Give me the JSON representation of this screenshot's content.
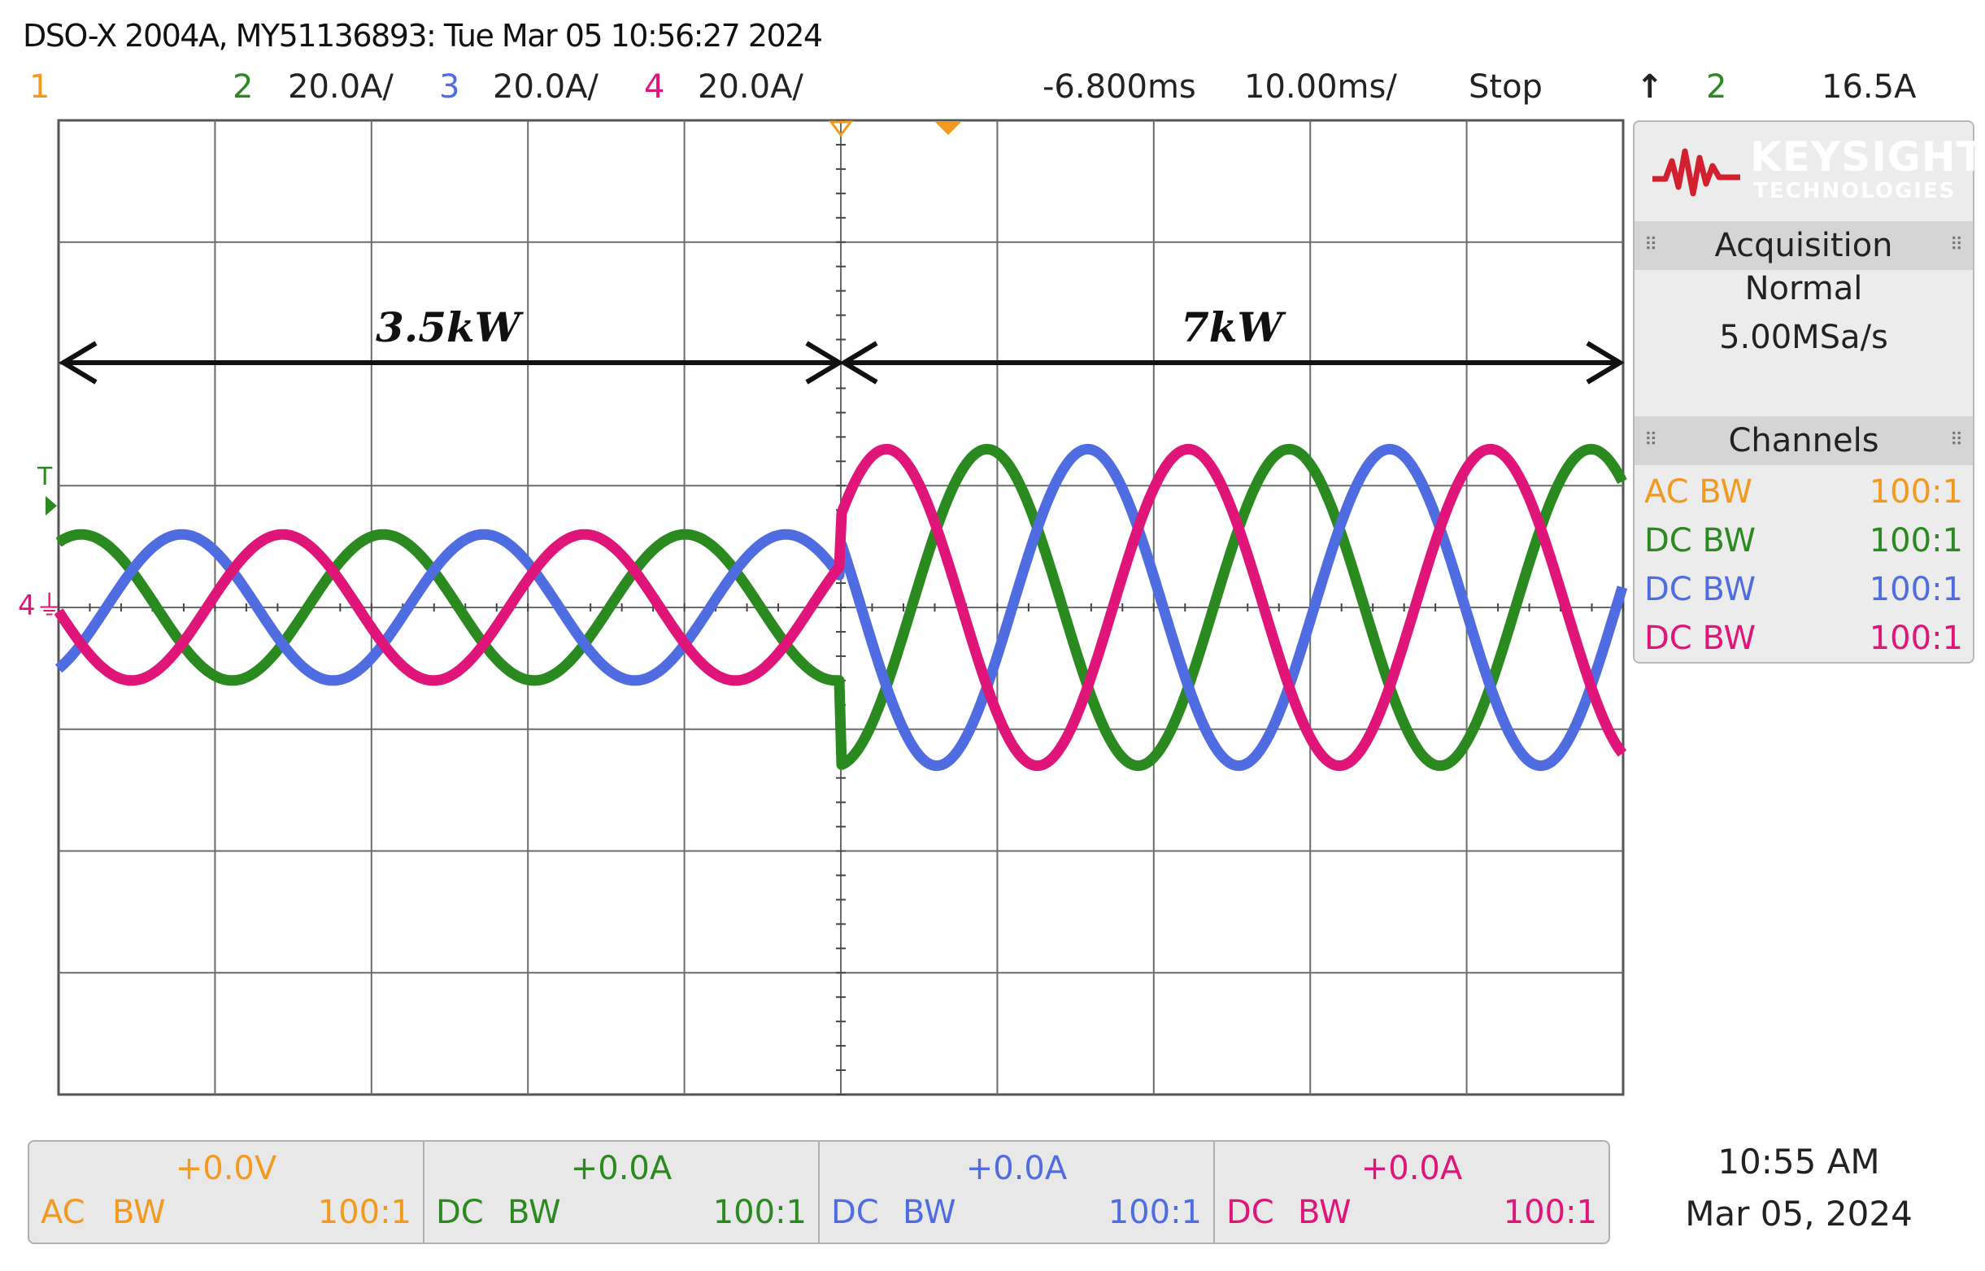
{
  "header": {
    "title": "DSO-X 2004A, MY51136893: Tue Mar 05 10:56:27 2024",
    "ch1_num": "1",
    "ch2_num": "2",
    "ch2_scale": "20.0A/",
    "ch3_num": "3",
    "ch3_scale": "20.0A/",
    "ch4_num": "4",
    "ch4_scale": "20.0A/",
    "time_delay": "-6.800ms",
    "time_scale": "10.00ms/",
    "run_state": "Stop",
    "trigger_source": "2",
    "trigger_level": "16.5A"
  },
  "annotations": {
    "left": "3.5kW",
    "right": "7kW"
  },
  "side_panel": {
    "logo": "KEYSIGHT",
    "logo_sub": "TECHNOLOGIES",
    "acq_heading": "Acquisition",
    "acq_mode": "Normal",
    "acq_rate": "5.00MSa/s",
    "ch_heading": "Channels",
    "channels": [
      {
        "coupling": "AC BW",
        "probe": "100:1"
      },
      {
        "coupling": "DC BW",
        "probe": "100:1"
      },
      {
        "coupling": "DC BW",
        "probe": "100:1"
      },
      {
        "coupling": "DC BW",
        "probe": "100:1"
      }
    ]
  },
  "bottom_bar": [
    {
      "offset": "+0.0V",
      "coupling": "AC",
      "bw": "BW",
      "probe": "100:1"
    },
    {
      "offset": "+0.0A",
      "coupling": "DC",
      "bw": "BW",
      "probe": "100:1"
    },
    {
      "offset": "+0.0A",
      "coupling": "DC",
      "bw": "BW",
      "probe": "100:1"
    },
    {
      "offset": "+0.0A",
      "coupling": "DC",
      "bw": "BW",
      "probe": "100:1"
    }
  ],
  "clock": {
    "time": "10:55 AM",
    "date": "Mar 05, 2024"
  },
  "colors": {
    "ch1": "#f39a1e",
    "ch2": "#2a8a1f",
    "ch3": "#4f6de0",
    "ch4": "#e0157a",
    "grid": "#6b6b6b"
  },
  "waveform": {
    "amp_before_divisions": 0.6,
    "amp_after_divisions": 1.3,
    "period_divisions": 1.93,
    "step_time_divisions": 5.0,
    "phase_order": [
      "ch2",
      "ch3",
      "ch4"
    ]
  }
}
